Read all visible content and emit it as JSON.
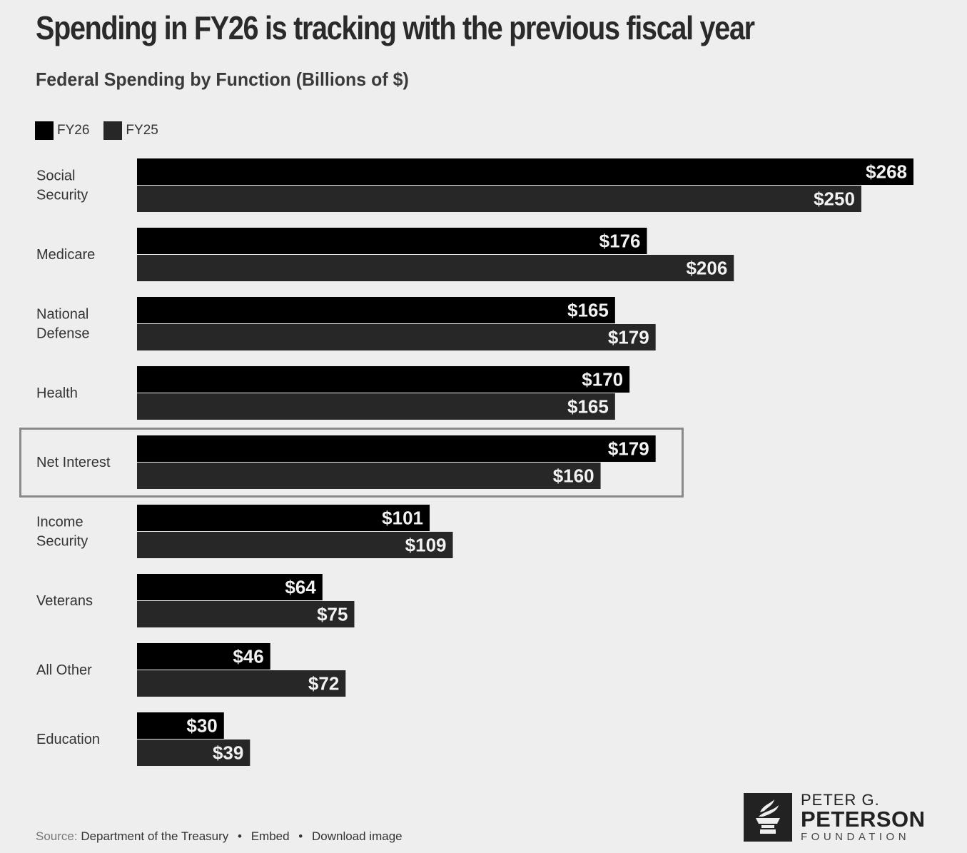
{
  "header": {
    "title": "Spending in FY26 is tracking with the previous fiscal year",
    "subtitle": "Federal Spending by Function (Billions of $)"
  },
  "legend": [
    {
      "label": "FY26",
      "color": "#000000"
    },
    {
      "label": "FY25",
      "color": "#272727"
    }
  ],
  "chart_data": {
    "type": "bar",
    "orientation": "horizontal",
    "title": "Spending in FY26 is tracking with the previous fiscal year",
    "subtitle": "Federal Spending by Function (Billions of $)",
    "xlabel": "",
    "ylabel": "",
    "value_prefix": "$",
    "highlighted_category": "Net Interest",
    "legend_position": "top-left",
    "grid": false,
    "categories": [
      [
        "Social",
        "Security"
      ],
      [
        "Medicare"
      ],
      [
        "National",
        "Defense"
      ],
      [
        "Health"
      ],
      [
        "Net Interest"
      ],
      [
        "Income",
        "Security"
      ],
      [
        "Veterans"
      ],
      [
        "All Other"
      ],
      [
        "Education"
      ]
    ],
    "series": [
      {
        "name": "FY26",
        "color": "#000000",
        "values": [
          268,
          176,
          165,
          170,
          179,
          101,
          64,
          46,
          30
        ]
      },
      {
        "name": "FY25",
        "color": "#272727",
        "values": [
          250,
          206,
          179,
          165,
          160,
          109,
          75,
          72,
          39
        ]
      }
    ],
    "xlim": [
      0,
      268
    ]
  },
  "footer": {
    "source_label": "Source:",
    "source_value": "Department of the Treasury",
    "separator": "•",
    "embed_label": "Embed",
    "download_label": "Download image"
  },
  "logo": {
    "line1": "PETER G.",
    "line2": "PETERSON",
    "line3": "FOUNDATION",
    "icon": "torch-icon"
  }
}
